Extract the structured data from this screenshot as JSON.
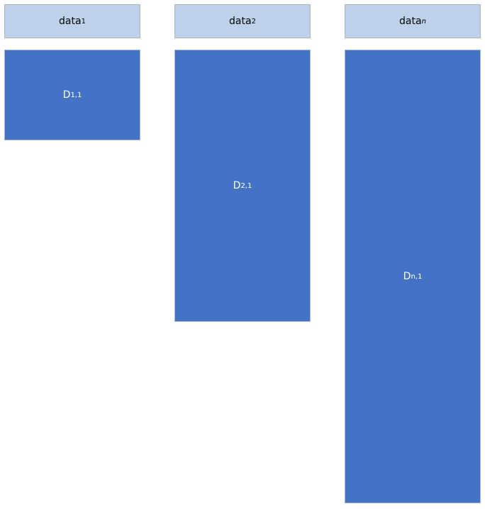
{
  "columns": [
    {
      "header": {
        "text": "data",
        "sub": "1"
      },
      "block": {
        "text": "D",
        "sub": "1,1"
      }
    },
    {
      "header": {
        "text": "data",
        "sub": "2"
      },
      "block": {
        "text": "D",
        "sub": "2,1"
      }
    },
    {
      "header": {
        "text": "data",
        "sub": "n"
      },
      "block": {
        "text": "D",
        "sub": "n,1"
      }
    }
  ]
}
